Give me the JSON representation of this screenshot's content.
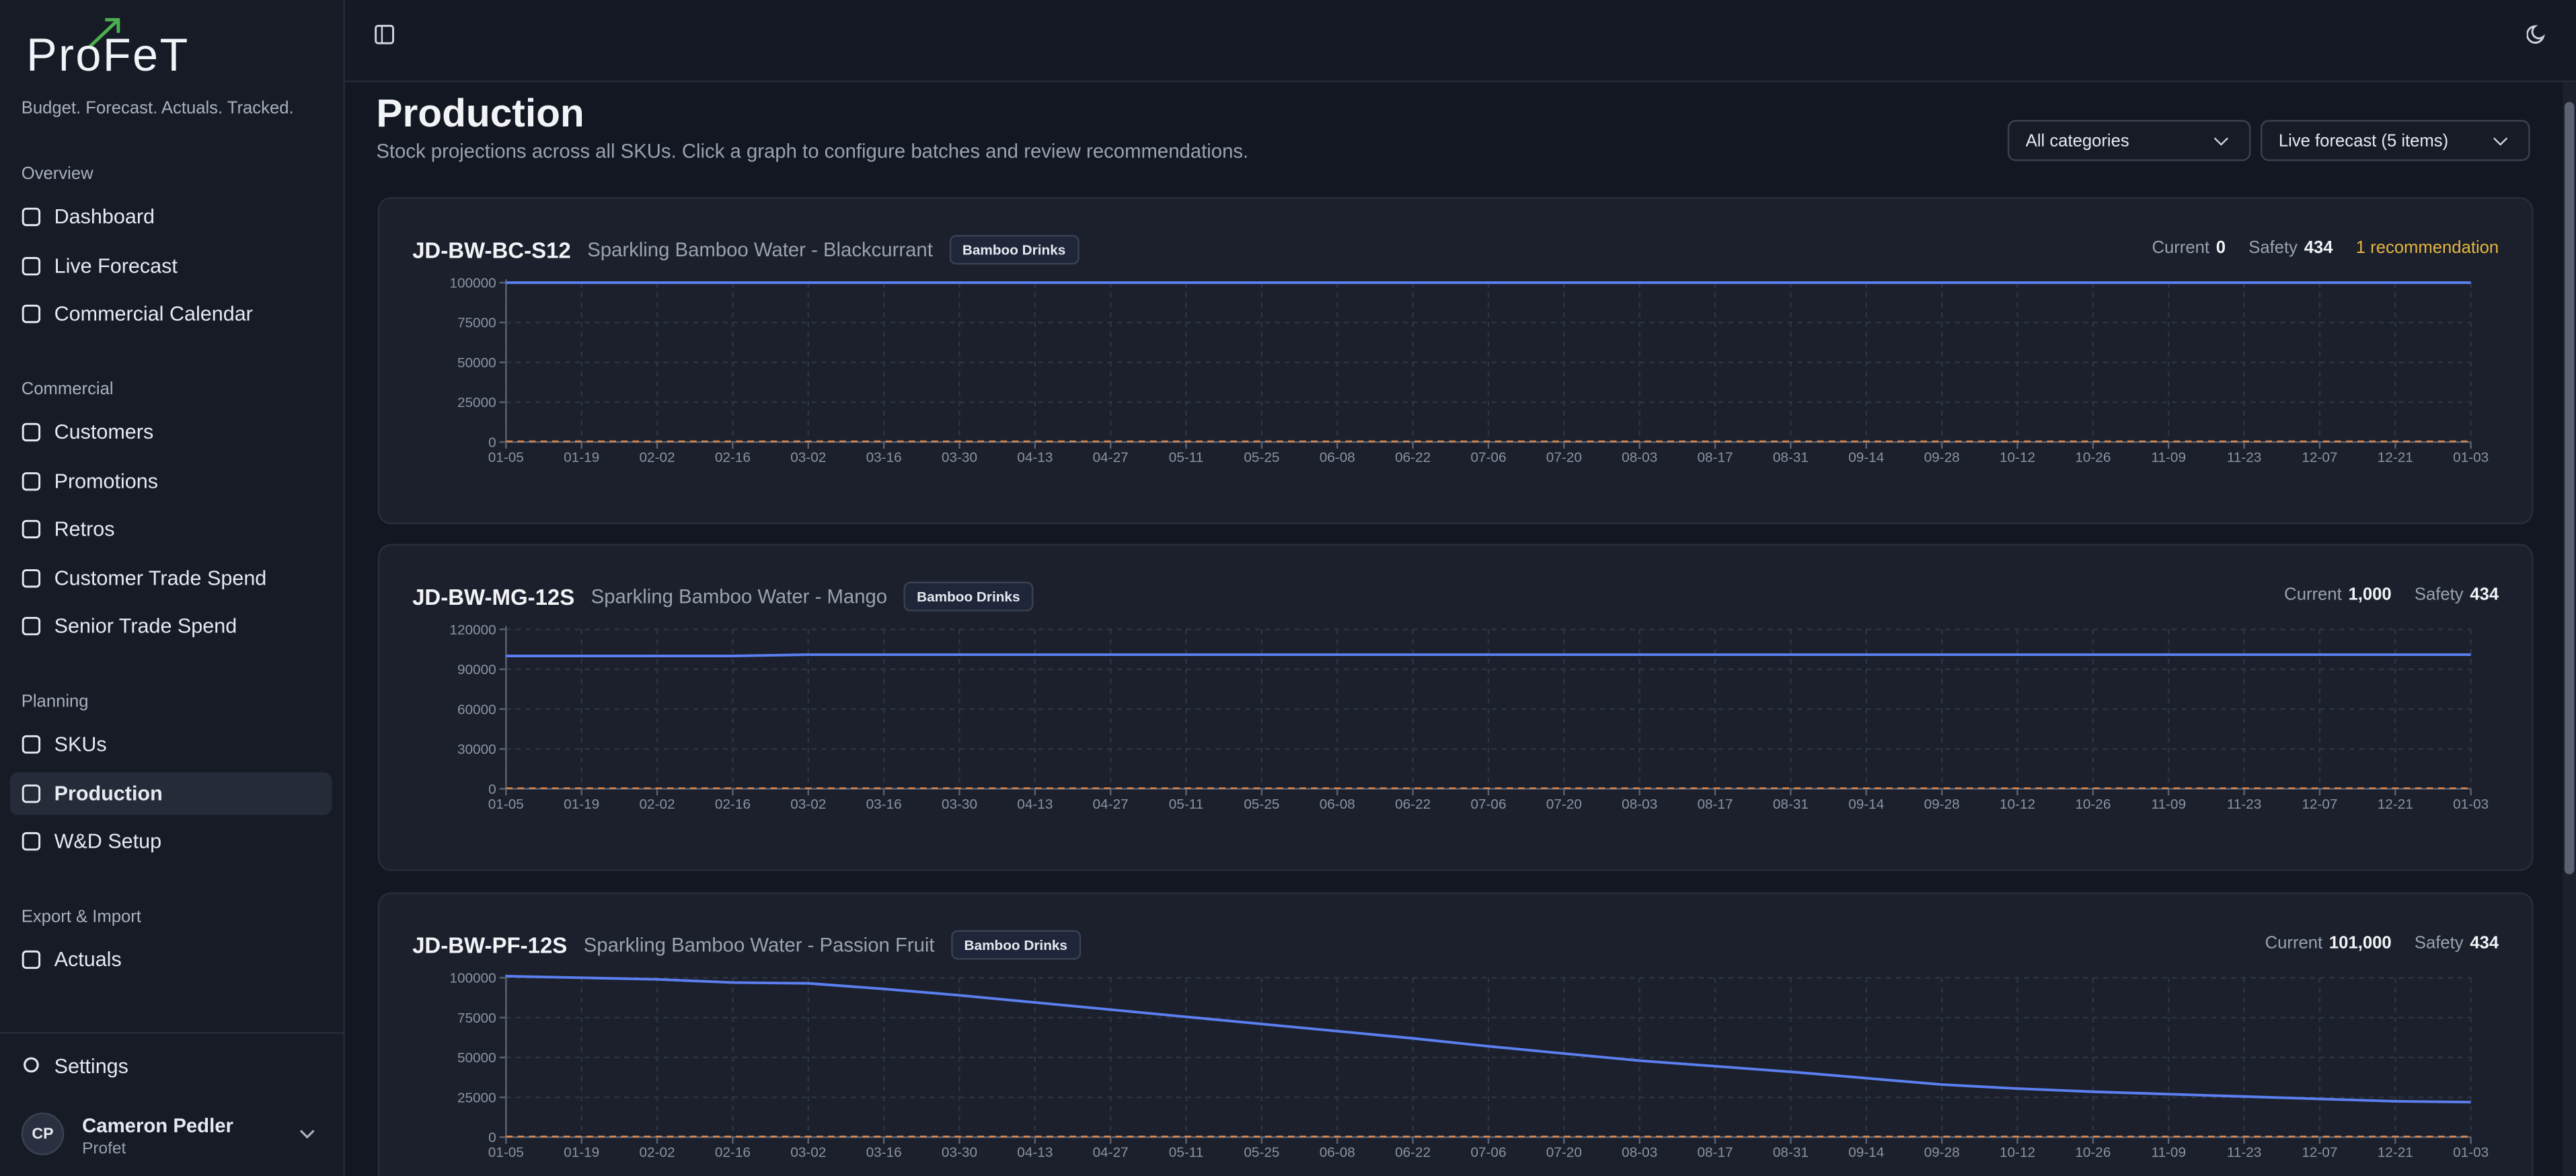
{
  "sidebar": {
    "logo": "ProFeT",
    "tagline": "Budget. Forecast. Actuals. Tracked.",
    "sections": [
      {
        "title": "Overview",
        "items": [
          "Dashboard",
          "Live Forecast",
          "Commercial Calendar"
        ]
      },
      {
        "title": "Commercial",
        "items": [
          "Customers",
          "Promotions",
          "Retros",
          "Customer Trade Spend",
          "Senior Trade Spend"
        ]
      },
      {
        "title": "Planning",
        "items": [
          "SKUs",
          "Production",
          "W&D Setup"
        ]
      },
      {
        "title": "Export & Import",
        "items": [
          "Actuals"
        ]
      }
    ],
    "settings": "Settings",
    "user": {
      "initials": "CP",
      "name": "Cameron Pedler",
      "org": "Profet"
    }
  },
  "header": {
    "title": "Production",
    "subtitle": "Stock projections across all SKUs. Click a graph to configure batches and review recommendations.",
    "filters": [
      "All categories",
      "Live forecast (5 items)"
    ]
  },
  "panels": [
    {
      "sku": "JD-BW-BC-S12",
      "name": "Sparkling Bamboo Water - Blackcurrant",
      "category": "Bamboo Drinks",
      "current_label": "Current",
      "current": "0",
      "safety_label": "Safety",
      "safety": "434",
      "recommendation": "1 recommendation"
    },
    {
      "sku": "JD-BW-MG-12S",
      "name": "Sparkling Bamboo Water - Mango",
      "category": "Bamboo Drinks",
      "current_label": "Current",
      "current": "1,000",
      "safety_label": "Safety",
      "safety": "434"
    },
    {
      "sku": "JD-BW-PF-12S",
      "name": "Sparkling Bamboo Water - Passion Fruit",
      "category": "Bamboo Drinks",
      "current_label": "Current",
      "current": "101,000",
      "safety_label": "Safety",
      "safety": "434"
    }
  ],
  "chart_data": [
    {
      "type": "line",
      "categories": [
        "01-05",
        "01-19",
        "02-02",
        "02-16",
        "03-02",
        "03-16",
        "03-30",
        "04-13",
        "04-27",
        "05-11",
        "05-25",
        "06-08",
        "06-22",
        "07-06",
        "07-20",
        "08-03",
        "08-17",
        "08-31",
        "09-14",
        "09-28",
        "10-12",
        "10-26",
        "11-09",
        "11-23",
        "12-07",
        "12-21",
        "01-03"
      ],
      "series": [
        {
          "color": "#5b7ff0",
          "values": [
            100000,
            100000,
            100000,
            100000,
            100000,
            100000,
            100000,
            100000,
            100000,
            100000,
            100000,
            100000,
            100000,
            100000,
            100000,
            100000,
            100000,
            100000,
            100000,
            100000,
            100000,
            100000,
            100000,
            100000,
            100000,
            100000,
            100000
          ]
        },
        {
          "color": "#e0884a",
          "dashed": true,
          "values": [
            434,
            434,
            434,
            434,
            434,
            434,
            434,
            434,
            434,
            434,
            434,
            434,
            434,
            434,
            434,
            434,
            434,
            434,
            434,
            434,
            434,
            434,
            434,
            434,
            434,
            434,
            434
          ]
        }
      ],
      "ylim": [
        0,
        100000
      ],
      "yticks": [
        0,
        25000,
        50000,
        75000,
        100000
      ],
      "grid": true
    },
    {
      "type": "line",
      "categories": [
        "01-05",
        "01-19",
        "02-02",
        "02-16",
        "03-02",
        "03-16",
        "03-30",
        "04-13",
        "04-27",
        "05-11",
        "05-25",
        "06-08",
        "06-22",
        "07-06",
        "07-20",
        "08-03",
        "08-17",
        "08-31",
        "09-14",
        "09-28",
        "10-12",
        "10-26",
        "11-09",
        "11-23",
        "12-07",
        "12-21",
        "01-03"
      ],
      "series": [
        {
          "color": "#5b7ff0",
          "values": [
            100000,
            100000,
            100000,
            100000,
            101000,
            101000,
            101000,
            101000,
            101000,
            101000,
            101000,
            101000,
            101000,
            101000,
            101000,
            101000,
            101000,
            101000,
            101000,
            101000,
            101000,
            101000,
            101000,
            101000,
            101000,
            101000,
            101000
          ]
        },
        {
          "color": "#e0884a",
          "dashed": true,
          "values": [
            434,
            434,
            434,
            434,
            434,
            434,
            434,
            434,
            434,
            434,
            434,
            434,
            434,
            434,
            434,
            434,
            434,
            434,
            434,
            434,
            434,
            434,
            434,
            434,
            434,
            434,
            434
          ]
        }
      ],
      "ylim": [
        0,
        120000
      ],
      "yticks": [
        0,
        30000,
        60000,
        90000,
        120000
      ],
      "grid": true
    },
    {
      "type": "line",
      "categories": [
        "01-05",
        "01-19",
        "02-02",
        "02-16",
        "03-02",
        "03-16",
        "03-30",
        "04-13",
        "04-27",
        "05-11",
        "05-25",
        "06-08",
        "06-22",
        "07-06",
        "07-20",
        "08-03",
        "08-17",
        "08-31",
        "09-14",
        "09-28",
        "10-12",
        "10-26",
        "11-09",
        "11-23",
        "12-07",
        "12-21",
        "01-03"
      ],
      "series": [
        {
          "color": "#5b7ff0",
          "values": [
            101000,
            100000,
            99000,
            97000,
            96500,
            93000,
            89000,
            84500,
            80000,
            75500,
            71000,
            66500,
            62000,
            57000,
            52500,
            48000,
            44500,
            41000,
            37000,
            33000,
            30500,
            28500,
            27000,
            25500,
            24000,
            22500,
            22000
          ]
        },
        {
          "color": "#e0884a",
          "dashed": true,
          "values": [
            434,
            434,
            434,
            434,
            434,
            434,
            434,
            434,
            434,
            434,
            434,
            434,
            434,
            434,
            434,
            434,
            434,
            434,
            434,
            434,
            434,
            434,
            434,
            434,
            434,
            434,
            434
          ]
        }
      ],
      "ylim": [
        0,
        100000
      ],
      "yticks": [
        0,
        25000,
        50000,
        75000,
        100000
      ],
      "grid": true
    }
  ]
}
